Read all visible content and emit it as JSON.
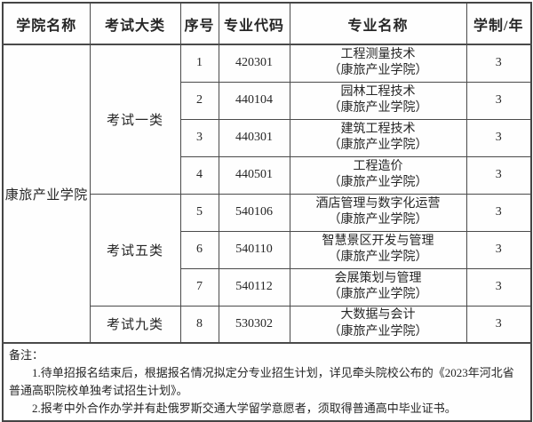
{
  "page": {
    "background": "#ffffff",
    "border_color": "#4a4a4a",
    "text_color": "#262626"
  },
  "table": {
    "headers": [
      "学院名称",
      "考试大类",
      "序号",
      "专业代码",
      "专业名称",
      "学制/年"
    ],
    "college": "康旅产业学院",
    "groups": [
      {
        "category": "考试一类",
        "rows": [
          {
            "seq": "1",
            "code": "420301",
            "major": "工程测量技术",
            "campus": "（康旅产业学院）",
            "years": "3"
          },
          {
            "seq": "2",
            "code": "440104",
            "major": "园林工程技术",
            "campus": "（康旅产业学院）",
            "years": "3"
          },
          {
            "seq": "3",
            "code": "440301",
            "major": "建筑工程技术",
            "campus": "（康旅产业学院）",
            "years": "3"
          },
          {
            "seq": "4",
            "code": "440501",
            "major": "工程造价",
            "campus": "（康旅产业学院）",
            "years": "3"
          }
        ]
      },
      {
        "category": "考试五类",
        "rows": [
          {
            "seq": "5",
            "code": "540106",
            "major": "酒店管理与数字化运营",
            "campus": "（康旅产业学院）",
            "years": "3"
          },
          {
            "seq": "6",
            "code": "540110",
            "major": "智慧景区开发与管理",
            "campus": "（康旅产业学院）",
            "years": "3"
          },
          {
            "seq": "7",
            "code": "540112",
            "major": "会展策划与管理",
            "campus": "（康旅产业学院）",
            "years": "3"
          }
        ]
      },
      {
        "category": "考试九类",
        "rows": [
          {
            "seq": "8",
            "code": "530302",
            "major": "大数据与会计",
            "campus": "（康旅产业学院）",
            "years": "3"
          }
        ]
      }
    ]
  },
  "notes": {
    "title": "备注：",
    "items": [
      "1.待单招报名结束后，根据报名情况拟定分专业招生计划，详见牵头院校公布的《2023年河北省普通高职院校单独考试招生计划》。",
      "2.报考中外合作办学并有赴俄罗斯交通大学留学意愿者，须取得普通高中毕业证书。"
    ]
  }
}
